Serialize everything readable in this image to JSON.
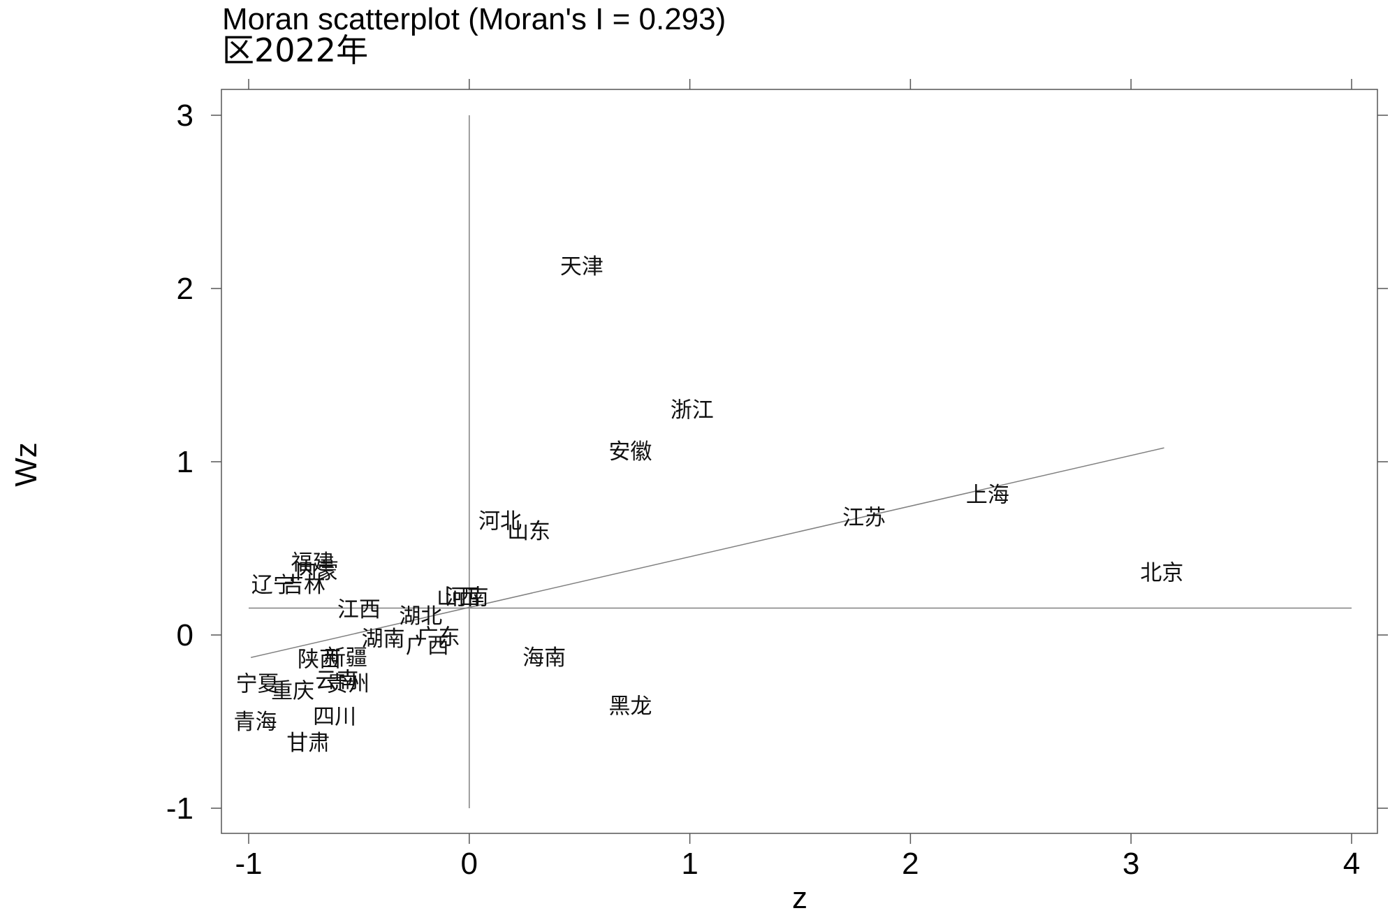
{
  "chart_data": {
    "type": "scatter",
    "title": "Moran scatterplot (Moran's I = 0.293)",
    "subtitle": "区2022年",
    "xlabel": "z",
    "ylabel": "Wz",
    "xlim": [
      -1.1,
      4.12
    ],
    "ylim": [
      -1.15,
      3.08
    ],
    "xticks": [
      -1,
      0,
      1,
      2,
      3,
      4
    ],
    "yticks": [
      -1,
      0,
      1,
      2,
      3
    ],
    "reference_lines": {
      "vertical_x": 0,
      "horizontal_y": 0.155,
      "vertical_range": [
        -1,
        3
      ],
      "horizontal_range": [
        -1,
        4
      ]
    },
    "fit_line": {
      "x": [
        -0.99,
        3.15
      ],
      "y": [
        -0.13,
        1.08
      ]
    },
    "points": [
      {
        "label": "天津",
        "x": 0.51,
        "y": 2.13
      },
      {
        "label": "浙江",
        "x": 1.01,
        "y": 1.3
      },
      {
        "label": "安徽",
        "x": 0.73,
        "y": 1.06
      },
      {
        "label": "上海",
        "x": 2.35,
        "y": 0.81
      },
      {
        "label": "江苏",
        "x": 1.79,
        "y": 0.68
      },
      {
        "label": "北京",
        "x": 3.14,
        "y": 0.36
      },
      {
        "label": "河北",
        "x": 0.14,
        "y": 0.66
      },
      {
        "label": "山东",
        "x": 0.27,
        "y": 0.6
      },
      {
        "label": "福建",
        "x": -0.71,
        "y": 0.42
      },
      {
        "label": "内蒙",
        "x": -0.69,
        "y": 0.37
      },
      {
        "label": "辽宁",
        "x": -0.89,
        "y": 0.29
      },
      {
        "label": "吉林",
        "x": -0.75,
        "y": 0.29
      },
      {
        "label": "江西",
        "x": -0.5,
        "y": 0.15
      },
      {
        "label": "山西",
        "x": -0.05,
        "y": 0.22
      },
      {
        "label": "河南",
        "x": -0.01,
        "y": 0.22
      },
      {
        "label": "湖北",
        "x": -0.22,
        "y": 0.11
      },
      {
        "label": "湖南",
        "x": -0.39,
        "y": -0.02
      },
      {
        "label": "广东",
        "x": -0.14,
        "y": -0.01
      },
      {
        "label": "广西",
        "x": -0.19,
        "y": -0.06
      },
      {
        "label": "海南",
        "x": 0.34,
        "y": -0.13
      },
      {
        "label": "陕西",
        "x": -0.68,
        "y": -0.14
      },
      {
        "label": "新疆",
        "x": -0.56,
        "y": -0.13
      },
      {
        "label": "宁夏",
        "x": -0.96,
        "y": -0.28
      },
      {
        "label": "重庆",
        "x": -0.8,
        "y": -0.32
      },
      {
        "label": "云南",
        "x": -0.6,
        "y": -0.26
      },
      {
        "label": "贵州",
        "x": -0.55,
        "y": -0.28
      },
      {
        "label": "黑龙",
        "x": 0.73,
        "y": -0.41
      },
      {
        "label": "四川",
        "x": -0.61,
        "y": -0.47
      },
      {
        "label": "青海",
        "x": -0.97,
        "y": -0.5
      },
      {
        "label": "甘肃",
        "x": -0.73,
        "y": -0.62
      }
    ]
  }
}
